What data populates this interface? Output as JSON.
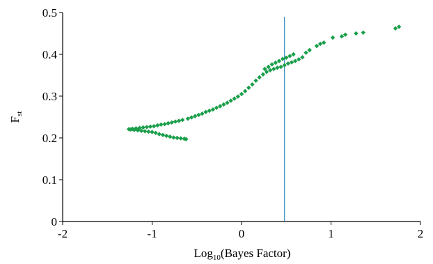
{
  "chart_data": {
    "type": "scatter",
    "title": "",
    "xlabel": {
      "prefix": "Log",
      "sub": "10",
      "rest": "(Bayes Factor)"
    },
    "ylabel": {
      "main": "F",
      "sub": "st"
    },
    "xlim": [
      -2,
      2
    ],
    "ylim": [
      0,
      0.5
    ],
    "xticks": [
      "-2",
      "-1",
      "0",
      "1",
      "2"
    ],
    "yticks": [
      "0",
      "0.1",
      "0.2",
      "0.3",
      "0.4",
      "0.5"
    ],
    "grid": false,
    "legend": "none",
    "colors": {
      "points": "#1a9e4a",
      "threshold_line": "#3a8fc0",
      "axes": "#000000"
    },
    "reference_line": {
      "orientation": "vertical",
      "x": 0.48
    },
    "series": [
      {
        "marker": "diamond",
        "points": [
          [
            -1.26,
            0.221
          ],
          [
            -1.24,
            0.22
          ],
          [
            -1.22,
            0.222
          ],
          [
            -1.2,
            0.219
          ],
          [
            -1.18,
            0.223
          ],
          [
            -1.16,
            0.218
          ],
          [
            -1.14,
            0.224
          ],
          [
            -1.12,
            0.217
          ],
          [
            -1.1,
            0.225
          ],
          [
            -1.08,
            0.216
          ],
          [
            -1.06,
            0.226
          ],
          [
            -1.04,
            0.215
          ],
          [
            -1.02,
            0.227
          ],
          [
            -1.0,
            0.214
          ],
          [
            -0.98,
            0.228
          ],
          [
            -0.96,
            0.212
          ],
          [
            -0.94,
            0.23
          ],
          [
            -0.92,
            0.209
          ],
          [
            -0.9,
            0.232
          ],
          [
            -0.88,
            0.207
          ],
          [
            -0.86,
            0.233
          ],
          [
            -0.84,
            0.205
          ],
          [
            -0.82,
            0.235
          ],
          [
            -0.8,
            0.203
          ],
          [
            -0.78,
            0.237
          ],
          [
            -0.76,
            0.201
          ],
          [
            -0.74,
            0.239
          ],
          [
            -0.72,
            0.2
          ],
          [
            -0.7,
            0.241
          ],
          [
            -0.68,
            0.199
          ],
          [
            -0.66,
            0.243
          ],
          [
            -0.64,
            0.198
          ],
          [
            -0.62,
            0.197
          ],
          [
            -0.6,
            0.246
          ],
          [
            -0.56,
            0.249
          ],
          [
            -0.52,
            0.252
          ],
          [
            -0.48,
            0.255
          ],
          [
            -0.44,
            0.258
          ],
          [
            -0.4,
            0.262
          ],
          [
            -0.36,
            0.265
          ],
          [
            -0.32,
            0.268
          ],
          [
            -0.28,
            0.272
          ],
          [
            -0.24,
            0.276
          ],
          [
            -0.2,
            0.28
          ],
          [
            -0.16,
            0.284
          ],
          [
            -0.12,
            0.289
          ],
          [
            -0.08,
            0.294
          ],
          [
            -0.04,
            0.299
          ],
          [
            0.0,
            0.305
          ],
          [
            0.04,
            0.312
          ],
          [
            0.08,
            0.32
          ],
          [
            0.12,
            0.328
          ],
          [
            0.16,
            0.337
          ],
          [
            0.2,
            0.345
          ],
          [
            0.24,
            0.352
          ],
          [
            0.28,
            0.358
          ],
          [
            0.32,
            0.362
          ],
          [
            0.36,
            0.365
          ],
          [
            0.4,
            0.368
          ],
          [
            0.44,
            0.37
          ],
          [
            0.48,
            0.374
          ],
          [
            0.52,
            0.378
          ],
          [
            0.56,
            0.381
          ],
          [
            0.6,
            0.384
          ],
          [
            0.64,
            0.388
          ],
          [
            0.68,
            0.393
          ],
          [
            0.72,
            0.404
          ],
          [
            0.76,
            0.41
          ],
          [
            0.84,
            0.42
          ],
          [
            0.88,
            0.425
          ],
          [
            0.92,
            0.428
          ],
          [
            1.02,
            0.44
          ],
          [
            1.12,
            0.443
          ],
          [
            1.16,
            0.447
          ],
          [
            1.28,
            0.45
          ],
          [
            1.36,
            0.452
          ],
          [
            1.72,
            0.462
          ],
          [
            1.76,
            0.466
          ],
          [
            0.26,
            0.365
          ],
          [
            0.3,
            0.37
          ],
          [
            0.34,
            0.376
          ],
          [
            0.38,
            0.38
          ],
          [
            0.42,
            0.384
          ],
          [
            0.46,
            0.389
          ],
          [
            0.5,
            0.392
          ],
          [
            0.54,
            0.396
          ],
          [
            0.58,
            0.4
          ]
        ]
      }
    ]
  }
}
